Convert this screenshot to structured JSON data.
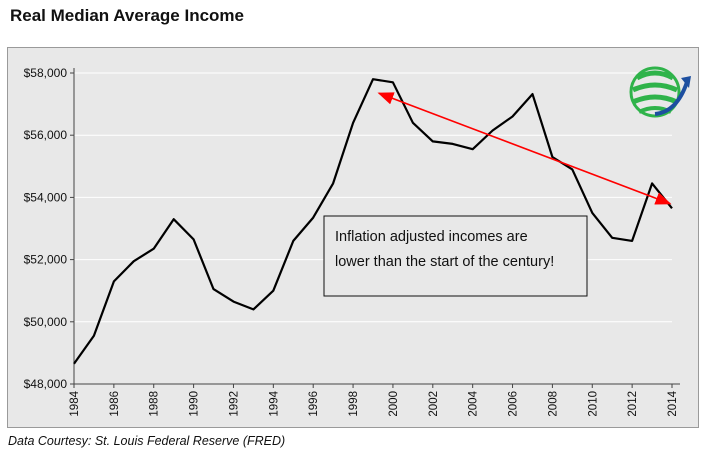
{
  "header": {
    "title": "Real Median Average Income"
  },
  "footer": {
    "source": "Data Courtesy: St. Louis Federal Reserve (FRED)"
  },
  "logo": {
    "icon": "globe-arrow-logo-icon",
    "colors": [
      "#2fb34a",
      "#1d4fa0"
    ]
  },
  "chart_data": {
    "type": "line",
    "title": "Real Median Average Income",
    "xlabel": "",
    "ylabel": "",
    "ylim": [
      48000,
      58000
    ],
    "yticks": [
      48000,
      50000,
      52000,
      54000,
      56000,
      58000
    ],
    "ytick_labels": [
      "$48,000",
      "$50,000",
      "$52,000",
      "$54,000",
      "$56,000",
      "$58,000"
    ],
    "xlim": [
      1984,
      2014
    ],
    "xticks": [
      1984,
      1986,
      1988,
      1990,
      1992,
      1994,
      1996,
      1998,
      2000,
      2002,
      2004,
      2006,
      2008,
      2010,
      2012,
      2014
    ],
    "xtick_labels": [
      "1984",
      "1986",
      "1988",
      "1990",
      "1992",
      "1994",
      "1996",
      "1998",
      "2000",
      "2002",
      "2004",
      "2006",
      "2008",
      "2010",
      "2012",
      "2014"
    ],
    "grid": true,
    "series": [
      {
        "color": "#000000",
        "x": [
          1984,
          1985,
          1986,
          1987,
          1988,
          1989,
          1990,
          1991,
          1992,
          1993,
          1994,
          1995,
          1996,
          1997,
          1998,
          1999,
          2000,
          2001,
          2002,
          2003,
          2004,
          2005,
          2006,
          2007,
          2008,
          2009,
          2010,
          2011,
          2012,
          2013,
          2014
        ],
        "y": [
          48650,
          49550,
          51300,
          51950,
          52350,
          53300,
          52650,
          51050,
          50650,
          50400,
          51000,
          52600,
          53350,
          54450,
          56400,
          57800,
          57700,
          56400,
          55800,
          55720,
          55550,
          56150,
          56600,
          57320,
          55300,
          54900,
          53500,
          52700,
          52600,
          54450,
          53650
        ]
      }
    ],
    "annotations": [
      {
        "type": "arrow",
        "color": "#ff0000",
        "from": [
          1999.3,
          57350
        ],
        "to": [
          2013.9,
          53800
        ],
        "double_headed": true
      },
      {
        "type": "textbox",
        "lines": [
          "Inflation adjusted incomes are",
          "lower than the start of the century!"
        ]
      }
    ]
  }
}
